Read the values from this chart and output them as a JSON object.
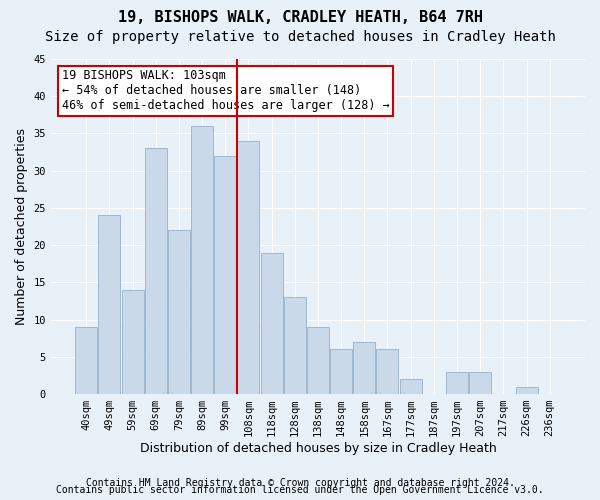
{
  "title_line1": "19, BISHOPS WALK, CRADLEY HEATH, B64 7RH",
  "title_line2": "Size of property relative to detached houses in Cradley Heath",
  "xlabel": "Distribution of detached houses by size in Cradley Heath",
  "ylabel": "Number of detached properties",
  "categories": [
    "40sqm",
    "49sqm",
    "59sqm",
    "69sqm",
    "79sqm",
    "89sqm",
    "99sqm",
    "108sqm",
    "118sqm",
    "128sqm",
    "138sqm",
    "148sqm",
    "158sqm",
    "167sqm",
    "177sqm",
    "187sqm",
    "197sqm",
    "207sqm",
    "217sqm",
    "226sqm",
    "236sqm"
  ],
  "values": [
    9,
    24,
    14,
    33,
    22,
    36,
    32,
    34,
    19,
    13,
    9,
    6,
    7,
    6,
    2,
    0,
    3,
    3,
    0,
    1,
    0
  ],
  "bar_color": "#c9d9ea",
  "bar_edge_color": "#a0b8d0",
  "vline_x": 6.5,
  "vline_color": "#cc0000",
  "annotation_box_text": "19 BISHOPS WALK: 103sqm\n← 54% of detached houses are smaller (148)\n46% of semi-detached houses are larger (128) →",
  "annotation_box_color": "#ffffff",
  "annotation_box_edge_color": "#cc0000",
  "ylim": [
    0,
    45
  ],
  "yticks": [
    0,
    5,
    10,
    15,
    20,
    25,
    30,
    35,
    40,
    45
  ],
  "footnote1": "Contains HM Land Registry data © Crown copyright and database right 2024.",
  "footnote2": "Contains public sector information licensed under the Open Government Licence v3.0.",
  "background_color": "#e8f0f8",
  "plot_background_color": "#e8f0f8",
  "grid_color": "#ffffff",
  "title_fontsize": 11,
  "subtitle_fontsize": 10,
  "label_fontsize": 9,
  "tick_fontsize": 7.5,
  "annotation_fontsize": 8.5,
  "footnote_fontsize": 7
}
